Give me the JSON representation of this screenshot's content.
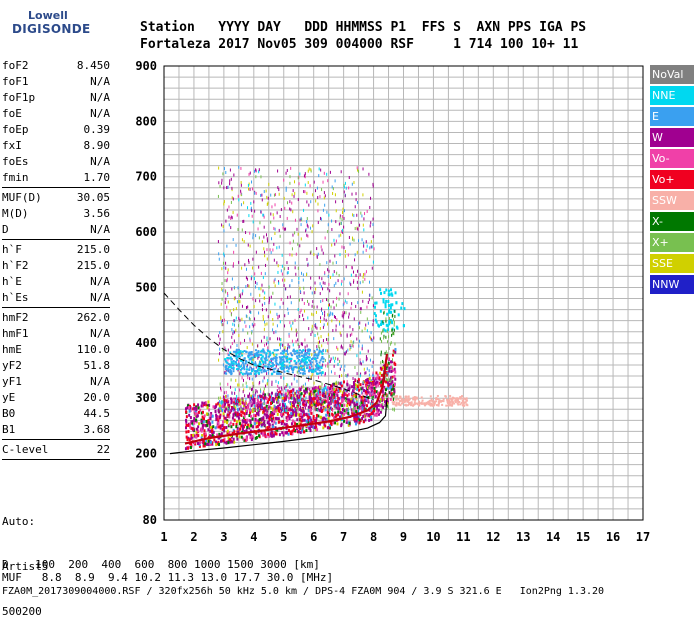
{
  "logo": {
    "top": "Lowell",
    "bottom": "DIGISONDE"
  },
  "header": {
    "line1": "Station   YYYY DAY   DDD HHMMSS P1  FFS S  AXN PPS IGA PS",
    "line2": "Fortaleza 2017 Nov05 309 004000 RSF     1 714 100 10+ 11"
  },
  "params": [
    {
      "label": "foF2",
      "value": "8.450"
    },
    {
      "label": "foF1",
      "value": "N/A"
    },
    {
      "label": "foF1p",
      "value": "N/A"
    },
    {
      "label": "foE",
      "value": "N/A"
    },
    {
      "label": "foEp",
      "value": "0.39"
    },
    {
      "label": "fxI",
      "value": "8.90"
    },
    {
      "label": "foEs",
      "value": "N/A"
    },
    {
      "label": "fmin",
      "value": "1.70"
    },
    {
      "sep": true
    },
    {
      "label": "MUF(D)",
      "value": "30.05"
    },
    {
      "label": "M(D)",
      "value": "3.56"
    },
    {
      "label": "D",
      "value": "N/A"
    },
    {
      "sep": true
    },
    {
      "label": "h`F",
      "value": "215.0"
    },
    {
      "label": "h`F2",
      "value": "215.0"
    },
    {
      "label": "h`E",
      "value": "N/A"
    },
    {
      "label": "h`Es",
      "value": "N/A"
    },
    {
      "sep": true
    },
    {
      "label": "hmF2",
      "value": "262.0"
    },
    {
      "label": "hmF1",
      "value": "N/A"
    },
    {
      "label": "hmE",
      "value": "110.0"
    },
    {
      "label": "yF2",
      "value": "51.8"
    },
    {
      "label": "yF1",
      "value": "N/A"
    },
    {
      "label": "yE",
      "value": "20.0"
    },
    {
      "label": "B0",
      "value": "44.5"
    },
    {
      "label": "B1",
      "value": "3.68"
    },
    {
      "sep": true
    },
    {
      "label": "C-level",
      "value": "22"
    },
    {
      "sep": true
    }
  ],
  "auto": {
    "line1": "Auto:",
    "line2": "Artist5",
    "line3": "500200"
  },
  "legend": [
    {
      "label": "NoVal",
      "color": "#808080"
    },
    {
      "label": "NNE",
      "color": "#00d8f0"
    },
    {
      "label": "E",
      "color": "#3aa0f0"
    },
    {
      "label": "W",
      "color": "#a00090"
    },
    {
      "label": "Vo-",
      "color": "#f040a8"
    },
    {
      "label": "Vo+",
      "color": "#f00020"
    },
    {
      "label": "SSW",
      "color": "#f8b0a8"
    },
    {
      "label": "X-",
      "color": "#007800"
    },
    {
      "label": "X+",
      "color": "#78c050"
    },
    {
      "label": "SSE",
      "color": "#d0d000"
    },
    {
      "label": "NNW",
      "color": "#2020c8"
    }
  ],
  "footer": {
    "line1": "D    100  200  400  600  800 1000 1500 3000 [km]",
    "line2": "MUF   8.8  8.9  9.4 10.2 11.3 13.0 17.7 30.0 [MHz]",
    "line3": "FZA0M_2017309004000.RSF / 320fx256h 50 kHz 5.0 km / DPS-4 FZA0M 904 / 3.9 S 321.6 E   Ion2Png 1.3.20"
  },
  "chart_data": {
    "type": "scatter",
    "title": "",
    "xlabel": "",
    "ylabel": "",
    "xlim": [
      1,
      17
    ],
    "ylim": [
      80,
      900
    ],
    "xticks": [
      1,
      2,
      3,
      4,
      5,
      6,
      7,
      8,
      9,
      10,
      11,
      12,
      13,
      14,
      15,
      16,
      17
    ],
    "yticks": [
      80,
      200,
      300,
      400,
      500,
      600,
      700,
      800,
      900
    ],
    "grid": true,
    "trace_F2": {
      "x": [
        1.7,
        2.5,
        3.5,
        4.5,
        5.5,
        6.5,
        7.2,
        7.8,
        8.1,
        8.3,
        8.45
      ],
      "y": [
        218,
        228,
        236,
        243,
        250,
        258,
        266,
        278,
        292,
        320,
        380
      ]
    },
    "profile_solid": {
      "x": [
        1.2,
        2,
        3,
        4,
        5,
        6,
        7,
        7.8,
        8.2,
        8.4,
        8.45
      ],
      "y": [
        200,
        205,
        210,
        216,
        222,
        229,
        237,
        246,
        256,
        268,
        300
      ]
    },
    "profile_dashed": {
      "x": [
        1.0,
        1.5,
        2.0,
        2.5,
        3.0,
        3.5,
        4.0,
        5.0,
        6.0,
        7.0,
        8.0
      ],
      "y": [
        490,
        460,
        432,
        408,
        388,
        372,
        360,
        346,
        333,
        317,
        297
      ]
    }
  }
}
